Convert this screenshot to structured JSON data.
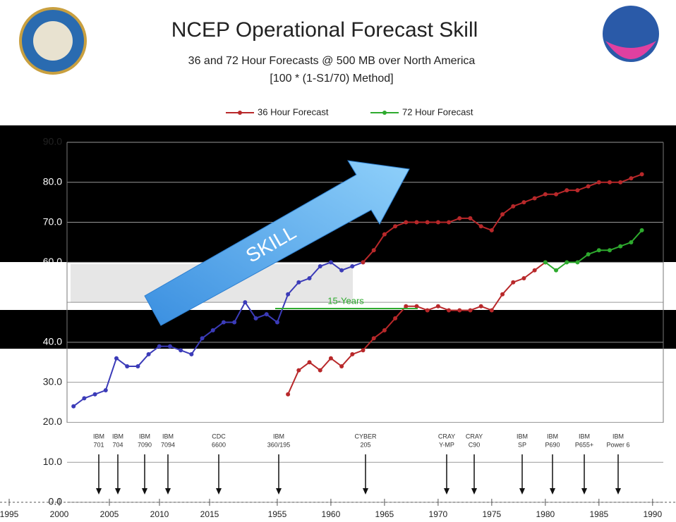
{
  "chart_data": {
    "type": "line",
    "title": "NCEP Operational Forecast Skill",
    "subtitle": "36 and 72 Hour Forecasts @ 500 MB over North America",
    "subtitle2": "[100 * (1-S1/70) Method]",
    "arrow_label": "SKILL",
    "annotation": "15-Years",
    "xlim": [
      1935,
      1991
    ],
    "xticks": [
      1955,
      1960,
      1965,
      1970,
      1975,
      1980,
      1985,
      1990
    ],
    "x2lim": [
      1995,
      2015
    ],
    "x2ticks": [
      1995,
      2000,
      2005,
      2010,
      2015
    ],
    "ylim": [
      0,
      90
    ],
    "yticks": [
      {
        "value": 0,
        "label": "0.0"
      },
      {
        "value": 10,
        "label": "10.0"
      },
      {
        "value": 20,
        "label": "20.0"
      },
      {
        "value": 30,
        "label": "30.0"
      },
      {
        "value": 40,
        "label": "40.0"
      },
      {
        "value": 50,
        "label": "50.0"
      },
      {
        "value": 60,
        "label": "60.0"
      },
      {
        "value": 70,
        "label": "70.0"
      },
      {
        "value": 80,
        "label": "80.0"
      },
      {
        "value": 90,
        "label": "90.0"
      }
    ],
    "grid": true,
    "legend": "top",
    "computers": [
      [
        "IBM",
        "701"
      ],
      [
        "IBM",
        "704"
      ],
      [
        "IBM",
        "7090"
      ],
      [
        "IBM",
        "7094"
      ],
      [
        "CDC",
        "6600"
      ],
      [
        "IBM",
        "360/195"
      ],
      [
        "CYBER",
        "205"
      ],
      [
        "CRAY",
        "Y-MP"
      ],
      [
        "CRAY",
        "C90"
      ],
      [
        "IBM",
        "SP"
      ],
      [
        "IBM",
        "P690"
      ],
      [
        "IBM",
        "P655+"
      ],
      [
        "IBM",
        "Power 6"
      ]
    ],
    "series": [
      {
        "color": "#3b3bb8",
        "x": [
          1936,
          1937,
          1938,
          1939,
          1940,
          1941,
          1942,
          1943,
          1944,
          1945,
          1946,
          1947,
          1948,
          1949,
          1950,
          1951,
          1952,
          1953,
          1954,
          1955,
          1956,
          1957,
          1958,
          1959,
          1960,
          1961,
          1962,
          1963
        ],
        "values": [
          24,
          26,
          27,
          28,
          36,
          34,
          34,
          37,
          39,
          39,
          38,
          37,
          41,
          43,
          45,
          45,
          50,
          46,
          47,
          45,
          52,
          55,
          56,
          59,
          60,
          58,
          59,
          60
        ]
      },
      {
        "name": "36 Hour Forecast",
        "color": "#b8282a",
        "x": [
          1963,
          1964,
          1965,
          1966,
          1967,
          1968,
          1969,
          1970,
          1971,
          1972,
          1973,
          1974,
          1975,
          1976,
          1977,
          1978,
          1979,
          1980,
          1981,
          1982,
          1983,
          1984,
          1985,
          1986,
          1987,
          1988,
          1989
        ],
        "values": [
          60,
          63,
          67,
          69,
          70,
          70,
          70,
          70,
          70,
          71,
          71,
          69,
          68,
          72,
          74,
          75,
          76,
          77,
          77,
          78,
          78,
          79,
          80,
          80,
          80,
          81,
          82
        ]
      },
      {
        "color": "#b8282a",
        "x": [
          1956,
          1957,
          1958,
          1959,
          1960,
          1961,
          1962,
          1963,
          1964,
          1965,
          1966,
          1967,
          1968,
          1969,
          1970,
          1971,
          1972,
          1973,
          1974,
          1975,
          1976,
          1977,
          1978,
          1979,
          1980
        ],
        "values": [
          27,
          33,
          35,
          33,
          36,
          34,
          37,
          38,
          41,
          43,
          46,
          49,
          49,
          48,
          49,
          48,
          48,
          48,
          49,
          48,
          52,
          55,
          56,
          58,
          60
        ]
      },
      {
        "name": "72 Hour Forecast",
        "color": "#2eaa2e",
        "x": [
          1980,
          1981,
          1982,
          1983,
          1984,
          1985,
          1986,
          1987,
          1988,
          1989
        ],
        "values": [
          60,
          58,
          60,
          60,
          62,
          63,
          63,
          64,
          65,
          68
        ]
      }
    ]
  }
}
